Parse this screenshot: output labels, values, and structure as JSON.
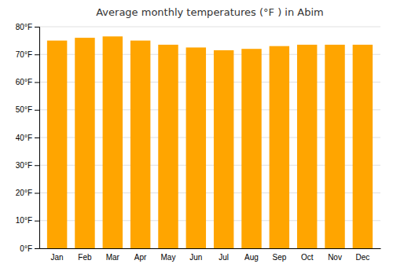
{
  "chart_data": {
    "type": "bar",
    "title": "Average monthly temperatures (°F ) in Abim",
    "categories": [
      "Jan",
      "Feb",
      "Mar",
      "Apr",
      "May",
      "Jun",
      "Jul",
      "Aug",
      "Sep",
      "Oct",
      "Nov",
      "Dec"
    ],
    "values": [
      75,
      76,
      76.5,
      75,
      73.5,
      72.5,
      71.5,
      72,
      73,
      73.5,
      73.5,
      73.5
    ],
    "color": "#FFA500",
    "ylim": [
      0,
      80
    ],
    "yticks": [
      {
        "value": 0,
        "label": "0°F"
      },
      {
        "value": 10,
        "label": "10°F"
      },
      {
        "value": 20,
        "label": "20°F"
      },
      {
        "value": 30,
        "label": "30°F"
      },
      {
        "value": 40,
        "label": "40°F"
      },
      {
        "value": 50,
        "label": "50°F"
      },
      {
        "value": 60,
        "label": "60°F"
      },
      {
        "value": 70,
        "label": "70°F"
      },
      {
        "value": 80,
        "label": "80°F"
      }
    ],
    "grid": true
  }
}
